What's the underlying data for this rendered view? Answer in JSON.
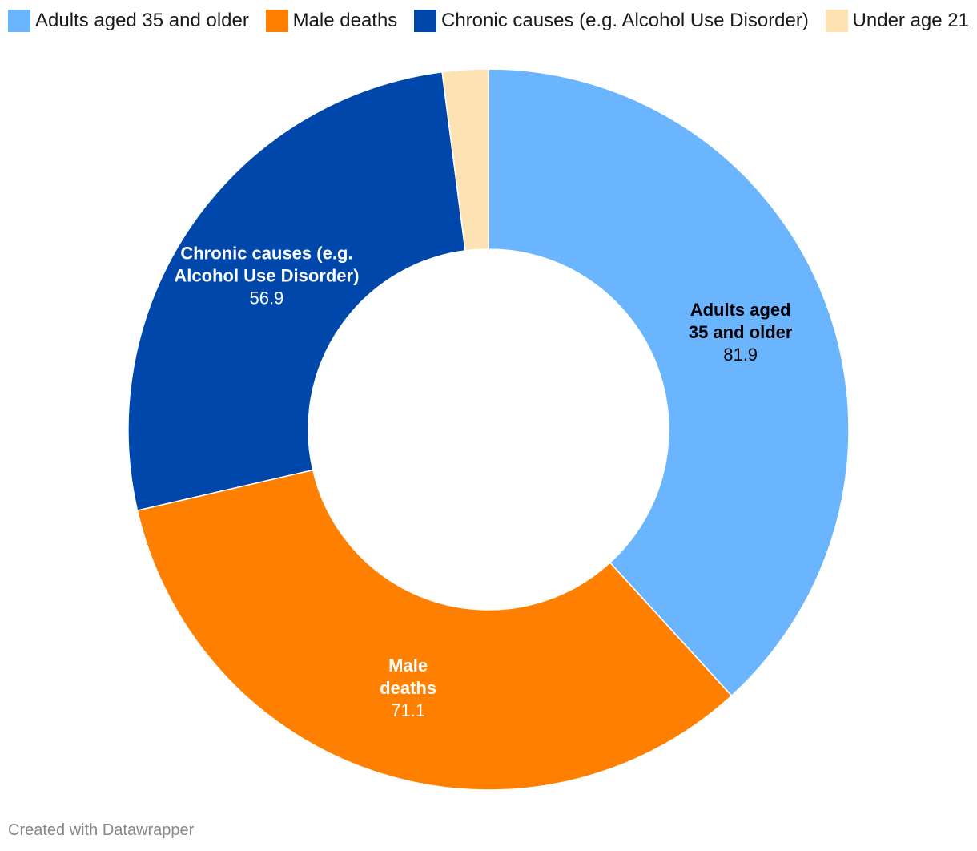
{
  "chart_data": {
    "type": "pie",
    "variant": "donut",
    "categories": [
      "Adults aged 35 and older",
      "Male deaths",
      "Chronic causes (e.g. Alcohol Use Disorder)",
      "Under age 21"
    ],
    "values": [
      81.9,
      71.1,
      56.9,
      4.4
    ],
    "data_labels": [
      {
        "lines": [
          "Adults aged",
          "35 and older"
        ],
        "value": "81.9",
        "text_color": "#000000"
      },
      {
        "lines": [
          "Male",
          "deaths"
        ],
        "value": "71.1",
        "text_color": "#ffffff"
      },
      {
        "lines": [
          "Chronic causes (e.g.",
          "Alcohol Use Disorder)"
        ],
        "value": "56.9",
        "text_color": "#ffffff"
      },
      {
        "lines": [],
        "value": "",
        "text_color": "#000000"
      }
    ],
    "colors": [
      "#6bb5ff",
      "#ff8000",
      "#0047ab",
      "#fde2b4"
    ],
    "legend_position": "top"
  },
  "legend": [
    {
      "label": "Adults aged 35 and older",
      "color": "#6bb5ff"
    },
    {
      "label": "Male deaths",
      "color": "#ff8000"
    },
    {
      "label": "Chronic causes (e.g. Alcohol Use Disorder)",
      "color": "#0047ab"
    },
    {
      "label": "Under age 21",
      "color": "#fde2b4"
    }
  ],
  "footer": "Created with Datawrapper"
}
